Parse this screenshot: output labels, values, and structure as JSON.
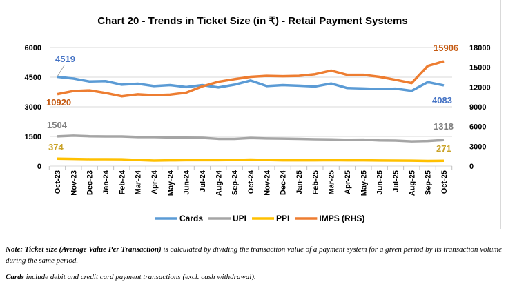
{
  "chart_data": {
    "type": "line",
    "title": "Chart 20 - Trends in Ticket Size (in ₹) - Retail Payment Systems",
    "categories": [
      "Oct-23",
      "Nov-23",
      "Dec-23",
      "Jan-24",
      "Feb-24",
      "Mar-24",
      "Apr-24",
      "May-24",
      "Jun-24",
      "Jul-24",
      "Aug-24",
      "Sep-24",
      "Oct-24",
      "Nov-24",
      "Dec-24",
      "Jan-25",
      "Feb-25",
      "Mar-25",
      "Apr-25",
      "May-25",
      "Jun-25",
      "Jul-25",
      "Aug-25",
      "Sep-25",
      "Oct-25"
    ],
    "left_axis": {
      "min": 0,
      "max": 6000,
      "ticks": [
        "0",
        "1500",
        "3000",
        "4500",
        "6000"
      ]
    },
    "right_axis": {
      "min": 0,
      "max": 18000,
      "ticks": [
        "0",
        "3000",
        "6000",
        "9000",
        "12000",
        "15000",
        "18000"
      ]
    },
    "grid": true,
    "legend": "bottom",
    "series": [
      {
        "name": "Cards",
        "axis": "left",
        "color": "#5b9bd5",
        "values": [
          4519,
          4430,
          4280,
          4300,
          4120,
          4170,
          4050,
          4100,
          4000,
          4100,
          3980,
          4120,
          4330,
          4050,
          4100,
          4070,
          4030,
          4180,
          3950,
          3930,
          3900,
          3920,
          3810,
          4250,
          4083
        ],
        "labels": [
          "4519",
          "4083"
        ]
      },
      {
        "name": "UPI",
        "axis": "left",
        "color": "#a5a5a5",
        "values": [
          1504,
          1540,
          1510,
          1500,
          1500,
          1470,
          1470,
          1450,
          1440,
          1430,
          1380,
          1380,
          1420,
          1400,
          1390,
          1380,
          1360,
          1350,
          1330,
          1340,
          1300,
          1290,
          1250,
          1270,
          1318
        ],
        "labels": [
          "1504",
          "1318"
        ]
      },
      {
        "name": "PPI",
        "axis": "left",
        "color": "#ffc000",
        "values": [
          374,
          360,
          350,
          350,
          345,
          310,
          280,
          290,
          300,
          300,
          300,
          310,
          330,
          310,
          290,
          290,
          290,
          300,
          290,
          290,
          285,
          280,
          275,
          260,
          271
        ],
        "labels": [
          "374",
          "271"
        ]
      },
      {
        "name": "IMPS (RHS)",
        "axis": "right",
        "color": "#ed7d31",
        "values": [
          10920,
          11400,
          11500,
          11100,
          10600,
          10900,
          10750,
          10850,
          11150,
          12100,
          12800,
          13200,
          13550,
          13700,
          13650,
          13700,
          13950,
          14500,
          13850,
          13850,
          13550,
          13100,
          12600,
          15200,
          15906
        ],
        "labels": [
          "10920",
          "15906"
        ]
      }
    ]
  },
  "notes": {
    "note1_bold": "Note: Ticket size (Average Value Per Transaction)",
    "note1_rest": " is calculated by dividing the transaction value of a payment system for a given period by its transaction volume during the same period.",
    "note2_bold": "Cards",
    "note2_rest": " include debit and credit card payment transactions (excl. cash withdrawal)."
  }
}
